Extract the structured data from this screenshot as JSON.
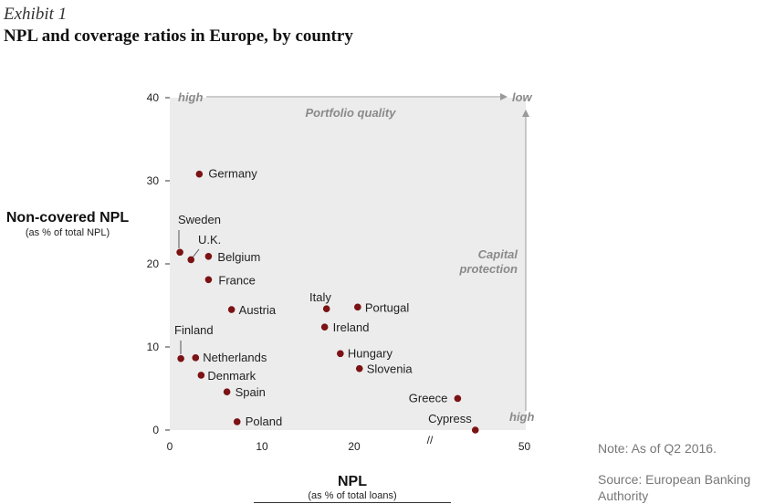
{
  "header": {
    "exhibit": "Exhibit 1",
    "title": "NPL and coverage ratios in Europe, by country"
  },
  "axes": {
    "y_title": "Non-covered NPL",
    "y_subtitle": "(as % of total NPL)",
    "x_title": "NPL",
    "x_subtitle": "(as % of total loans)"
  },
  "annotations": {
    "high_top": "high",
    "low_top": "low",
    "portfolio_quality": "Portfolio quality",
    "capital_protection_line1": "Capital",
    "capital_protection_line2": "protection",
    "high_right": "high",
    "axis_break": "//"
  },
  "footer": {
    "note": "Note: As of Q2 2016.",
    "source": "Source: European Banking Authority"
  },
  "colors": {
    "point": "#7b1214",
    "background": "#ececec",
    "annotation": "#8a8a8a"
  },
  "chart_data": {
    "type": "scatter",
    "xlabel": "NPL",
    "ylabel": "Non-covered NPL",
    "xlim": [
      0,
      50
    ],
    "ylim": [
      0,
      40
    ],
    "x_ticks": [
      0,
      10,
      20,
      50
    ],
    "y_ticks": [
      0,
      10,
      20,
      30,
      40
    ],
    "x_axis_break": "between 20 and 50",
    "grid": false,
    "points": [
      {
        "label": "Germany",
        "x": 3.2,
        "y": 30.8
      },
      {
        "label": "Sweden",
        "x": 1.1,
        "y": 21.4
      },
      {
        "label": "U.K.",
        "x": 2.3,
        "y": 20.5
      },
      {
        "label": "Belgium",
        "x": 4.2,
        "y": 20.9
      },
      {
        "label": "France",
        "x": 4.2,
        "y": 18.1
      },
      {
        "label": "Austria",
        "x": 6.7,
        "y": 14.5
      },
      {
        "label": "Italy",
        "x": 17.0,
        "y": 14.6
      },
      {
        "label": "Portugal",
        "x": 21.2,
        "y": 14.8
      },
      {
        "label": "Ireland",
        "x": 16.8,
        "y": 12.4
      },
      {
        "label": "Finland",
        "x": 1.2,
        "y": 8.6
      },
      {
        "label": "Netherlands",
        "x": 2.8,
        "y": 8.7
      },
      {
        "label": "Hungary",
        "x": 18.5,
        "y": 9.2
      },
      {
        "label": "Slovenia",
        "x": 21.8,
        "y": 7.4
      },
      {
        "label": "Denmark",
        "x": 3.4,
        "y": 6.6
      },
      {
        "label": "Spain",
        "x": 6.2,
        "y": 4.6
      },
      {
        "label": "Poland",
        "x": 7.3,
        "y": 1.0
      },
      {
        "label": "Greece",
        "x": 46.6,
        "y": 3.8
      },
      {
        "label": "Cypress",
        "x": 47.5,
        "y": 0.0
      }
    ]
  }
}
